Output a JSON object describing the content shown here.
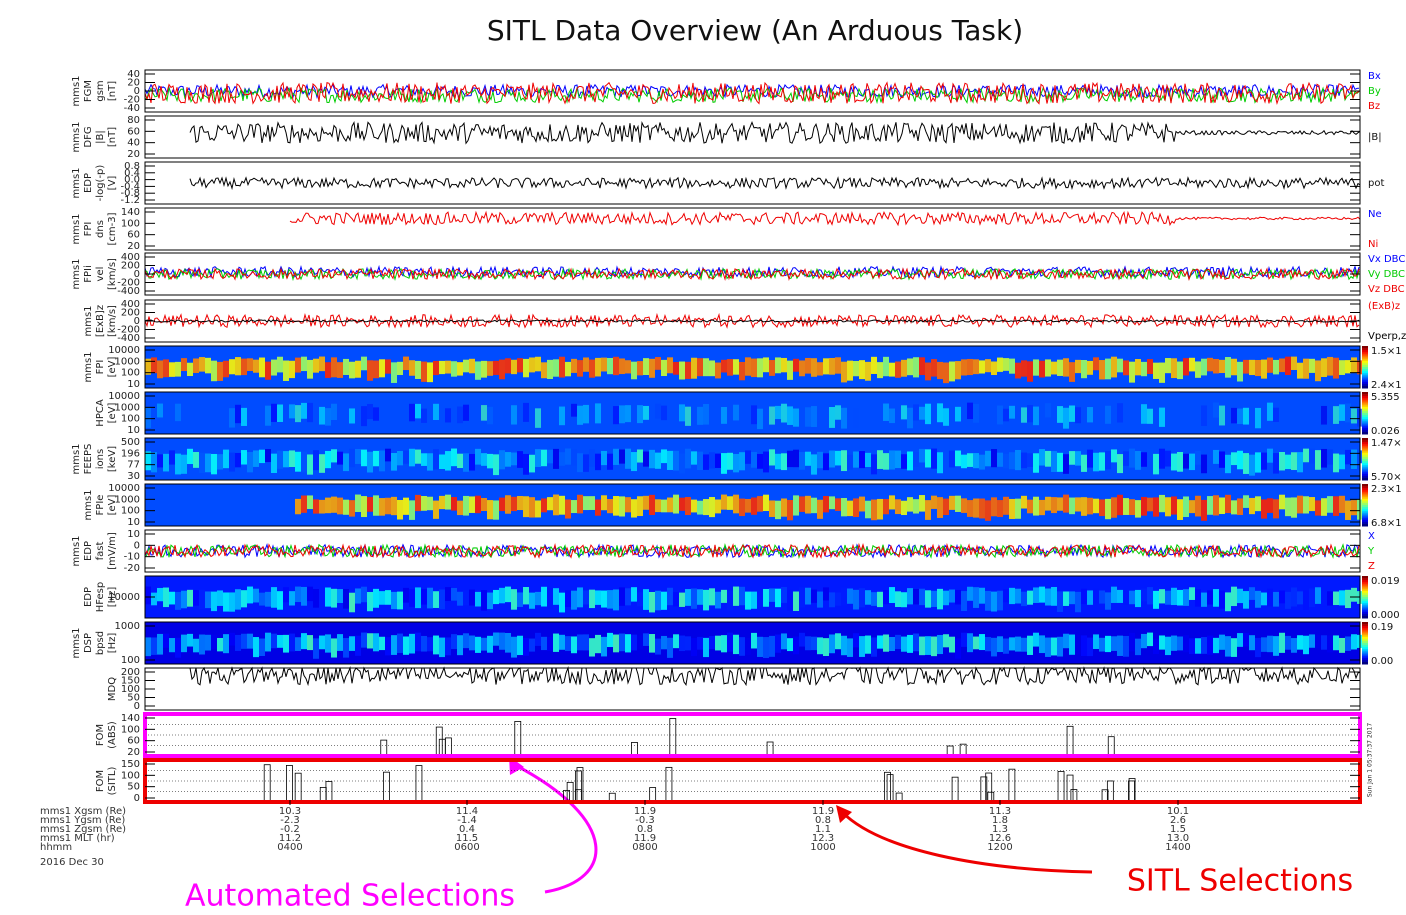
{
  "title": "SITL Data Overview (An Arduous Task)",
  "panels": [
    {
      "label": [
        "mms1",
        "FGM",
        "gsm",
        "[nT]"
      ],
      "ticks": [
        "40",
        "20",
        "0",
        "-20",
        "-40"
      ],
      "legend": [
        "Bx",
        "By",
        "Bz"
      ]
    },
    {
      "label": [
        "mms1",
        "DFG",
        "|B|",
        "[nT]"
      ],
      "ticks": [
        "80",
        "60",
        "40",
        "20"
      ],
      "legend": [
        "|B|"
      ]
    },
    {
      "label": [
        "mms1",
        "EDP",
        "-log(-p)",
        "[V]"
      ],
      "ticks": [
        "0.8",
        "0.4",
        "0.0",
        "-0.4",
        "-0.8",
        "-1.2"
      ],
      "legend": [
        "pot"
      ]
    },
    {
      "label": [
        "mms1",
        "FPI",
        "dns",
        "[cm-3]"
      ],
      "ticks": [
        "140",
        "100",
        "60",
        "20"
      ],
      "legend": [
        "Ne",
        "Ni"
      ]
    },
    {
      "label": [
        "mms1",
        "FPIi",
        "vel",
        "[km/s]"
      ],
      "ticks": [
        "400",
        "200",
        "0",
        "-200",
        "-400"
      ],
      "legend": [
        "Vx DBC",
        "Vy DBC",
        "Vz DBC"
      ]
    },
    {
      "label": [
        "mms1",
        "[ExB]z",
        "[km/s]"
      ],
      "ticks": [
        "400",
        "200",
        "0",
        "-200",
        "-400"
      ],
      "legend": [
        "(ExB)z",
        "Vperp,z"
      ]
    },
    {
      "label": [
        "mms1",
        "FPI",
        "[eV]"
      ],
      "ticks": [
        "10000",
        "1000",
        "100",
        "10"
      ],
      "legend": [
        "1.5×1",
        "2.4×1"
      ]
    },
    {
      "label": [
        "HPCA",
        "[eV]"
      ],
      "ticks": [
        "10000",
        "1000",
        "100",
        "10"
      ],
      "legend": [
        "5.355",
        "0.026"
      ]
    },
    {
      "label": [
        "mms1",
        "FEEPS",
        "ions",
        "[keV]"
      ],
      "ticks": [
        "500",
        "196",
        "77",
        "30"
      ],
      "legend": [
        "1.47×",
        "5.70×"
      ]
    },
    {
      "label": [
        "mms1",
        "FPIe",
        "[eV]"
      ],
      "ticks": [
        "10000",
        "1000",
        "100",
        "10"
      ],
      "legend": [
        "2.3×1",
        "6.8×1"
      ]
    },
    {
      "label": [
        "mms1",
        "EDP",
        "fast",
        "[mV/m]"
      ],
      "ticks": [
        "10",
        "0",
        "-10",
        "-20"
      ],
      "legend": [
        "X",
        "Y",
        "Z"
      ]
    },
    {
      "label": [
        "EDP",
        "HFesp",
        "[Hz]"
      ],
      "ticks": [
        "10000"
      ],
      "legend": [
        "0.019",
        "0.000"
      ]
    },
    {
      "label": [
        "mms1",
        "DSP",
        "bpsd",
        "[Hz]"
      ],
      "ticks": [
        "1000",
        "100"
      ],
      "legend": [
        "0.19",
        "0.00"
      ]
    },
    {
      "label": [
        "MDQ"
      ],
      "ticks": [
        "200",
        "150",
        "100",
        "50",
        "0"
      ],
      "legend": []
    },
    {
      "label": [
        "FOM",
        "(ABS)"
      ],
      "ticks": [
        "140",
        "100",
        "60",
        "20"
      ],
      "legend": []
    },
    {
      "label": [
        "FOM",
        "(SITL)"
      ],
      "ticks": [
        "150",
        "100",
        "50",
        "0"
      ],
      "legend": []
    }
  ],
  "stamp": "Sun Jan 1 05:37:37 2017",
  "orbit": {
    "rows": [
      "mms1 Xgsm (Re)",
      "mms1 Ygsm (Re)",
      "mms1 Zgsm (Re)",
      "mms1 MLT (hr)",
      "hhmm"
    ],
    "columns": [
      [
        "10.3",
        "-2.3",
        "-0.2",
        "11.2",
        "0400"
      ],
      [
        "11.4",
        "-1.4",
        "0.4",
        "11.5",
        "0600"
      ],
      [
        "11.9",
        "-0.3",
        "0.8",
        "11.9",
        "0800"
      ],
      [
        "11.9",
        "0.8",
        "1.1",
        "12.3",
        "1000"
      ],
      [
        "11.3",
        "1.8",
        "1.3",
        "12.6",
        "1200"
      ],
      [
        "10.1",
        "2.6",
        "1.5",
        "13.0",
        "1400"
      ]
    ],
    "date": "2016 Dec 30"
  },
  "annotations": {
    "automated": "Automated Selections",
    "sitl": "SITL Selections"
  }
}
